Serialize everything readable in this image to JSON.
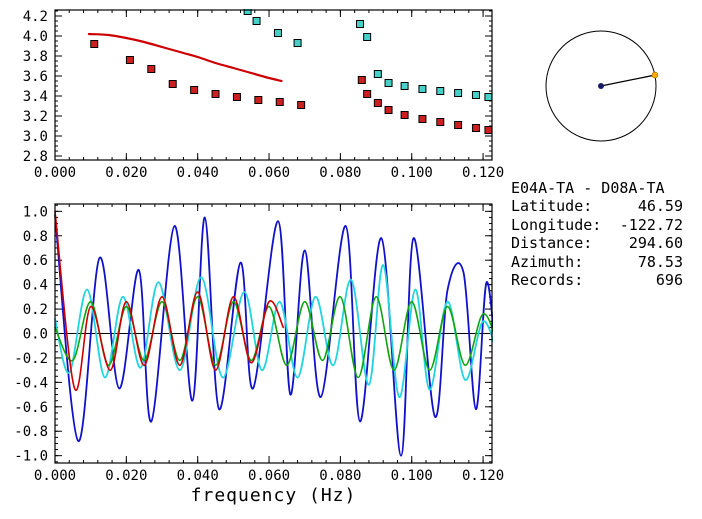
{
  "info": {
    "pair": "E04A-TA - D08A-TA",
    "rows": [
      {
        "label": "Latitude:",
        "value": "46.59"
      },
      {
        "label": "Longitude:",
        "value": "-122.72"
      },
      {
        "label": "Distance:",
        "value": "294.60"
      },
      {
        "label": "Azimuth:",
        "value": "78.53"
      },
      {
        "label": "Records:",
        "value": "696"
      }
    ]
  },
  "azimuth_indicator": {
    "azimuth_deg": 78.53,
    "circle_color": "#000000",
    "center_dot_color": "#1a1a66",
    "end_dot_color": "#ffaa00"
  },
  "chart_data": [
    {
      "type": "scatter+line",
      "name": "dispersion-panel",
      "title": "",
      "xlabel": "",
      "ylabel": "",
      "xlim": [
        0,
        0.1225
      ],
      "ylim": [
        2.76,
        4.26
      ],
      "x_ticks": [
        0,
        0.02,
        0.04,
        0.06,
        0.08,
        0.1,
        0.12
      ],
      "x_tick_labels": [
        "0.000",
        "0.020",
        "0.040",
        "0.060",
        "0.080",
        "0.100",
        "0.120"
      ],
      "x_minor": 0.004,
      "y_ticks": [
        2.8,
        3.0,
        3.2,
        3.4,
        3.6,
        3.8,
        4.0,
        4.2
      ],
      "y_tick_labels": [
        "2.8",
        "3.0",
        "3.2",
        "3.4",
        "3.6",
        "3.8",
        "4.0",
        "4.2"
      ],
      "y_minor": 0.05,
      "zero_line": false,
      "series": [
        {
          "name": "measured-velocity-red-squares",
          "kind": "scatter",
          "marker": "square",
          "color": "#cc2020",
          "points": [
            [
              0.011,
              3.92
            ],
            [
              0.021,
              3.76
            ],
            [
              0.027,
              3.67
            ],
            [
              0.033,
              3.52
            ],
            [
              0.039,
              3.46
            ],
            [
              0.045,
              3.42
            ],
            [
              0.051,
              3.39
            ],
            [
              0.057,
              3.36
            ],
            [
              0.063,
              3.34
            ],
            [
              0.069,
              3.31
            ],
            [
              0.086,
              3.56
            ],
            [
              0.0875,
              3.42
            ],
            [
              0.0905,
              3.33
            ],
            [
              0.0935,
              3.26
            ],
            [
              0.098,
              3.21
            ],
            [
              0.103,
              3.17
            ],
            [
              0.108,
              3.14
            ],
            [
              0.113,
              3.11
            ],
            [
              0.118,
              3.08
            ],
            [
              0.1215,
              3.06
            ]
          ]
        },
        {
          "name": "measured-velocity-cyan-squares",
          "kind": "scatter",
          "marker": "square",
          "color": "#45d0c8",
          "points": [
            [
              0.054,
              4.25
            ],
            [
              0.0565,
              4.15
            ],
            [
              0.0625,
              4.03
            ],
            [
              0.068,
              3.93
            ],
            [
              0.0855,
              4.12
            ],
            [
              0.0875,
              3.99
            ],
            [
              0.0905,
              3.62
            ],
            [
              0.0935,
              3.53
            ],
            [
              0.098,
              3.5
            ],
            [
              0.103,
              3.47
            ],
            [
              0.108,
              3.45
            ],
            [
              0.113,
              3.43
            ],
            [
              0.118,
              3.41
            ],
            [
              0.1215,
              3.39
            ]
          ]
        },
        {
          "name": "reference-model-curve",
          "kind": "line",
          "color": "#cc0000",
          "width": 2.2,
          "points": [
            [
              0.0095,
              4.02
            ],
            [
              0.015,
              4.01
            ],
            [
              0.02,
              3.98
            ],
            [
              0.025,
              3.94
            ],
            [
              0.03,
              3.89
            ],
            [
              0.035,
              3.84
            ],
            [
              0.04,
              3.79
            ],
            [
              0.045,
              3.73
            ],
            [
              0.05,
              3.68
            ],
            [
              0.055,
              3.63
            ],
            [
              0.06,
              3.58
            ],
            [
              0.0635,
              3.55
            ]
          ]
        }
      ]
    },
    {
      "type": "line",
      "name": "spectra-panel",
      "title": "",
      "xlabel": "frequency (Hz)",
      "ylabel": "",
      "xlim": [
        0,
        0.1225
      ],
      "ylim": [
        -1.06,
        1.06
      ],
      "x_ticks": [
        0,
        0.02,
        0.04,
        0.06,
        0.08,
        0.1,
        0.12
      ],
      "x_tick_labels": [
        "0.000",
        "0.020",
        "0.040",
        "0.060",
        "0.080",
        "0.100",
        "0.120"
      ],
      "x_minor": 0.004,
      "y_ticks": [
        -1.0,
        -0.8,
        -0.6,
        -0.4,
        -0.2,
        0.0,
        0.2,
        0.4,
        0.6,
        0.8,
        1.0
      ],
      "y_tick_labels": [
        "-1.0",
        "-0.8",
        "-0.6",
        "-0.4",
        "-0.2",
        "0.0",
        "0.2",
        "0.4",
        "0.6",
        "0.8",
        "1.0"
      ],
      "y_minor": 0.05,
      "zero_line": true,
      "series": [
        {
          "name": "cross-spectrum-blue",
          "kind": "line",
          "color": "#1111cc",
          "width": 1.8,
          "points": [
            [
              0.0,
              0.97
            ],
            [
              0.0065,
              -0.88
            ],
            [
              0.0125,
              0.62
            ],
            [
              0.018,
              -0.45
            ],
            [
              0.0235,
              0.52
            ],
            [
              0.027,
              -0.72
            ],
            [
              0.0335,
              0.88
            ],
            [
              0.0385,
              -0.55
            ],
            [
              0.042,
              0.95
            ],
            [
              0.046,
              -0.62
            ],
            [
              0.052,
              0.58
            ],
            [
              0.0555,
              -0.45
            ],
            [
              0.0625,
              0.92
            ],
            [
              0.066,
              -0.5
            ],
            [
              0.07,
              0.68
            ],
            [
              0.0745,
              -0.52
            ],
            [
              0.0815,
              0.88
            ],
            [
              0.0855,
              -0.72
            ],
            [
              0.0915,
              0.78
            ],
            [
              0.097,
              -1.0
            ],
            [
              0.1005,
              0.78
            ],
            [
              0.1065,
              -0.68
            ],
            [
              0.11,
              0.35
            ],
            [
              0.1145,
              0.5
            ],
            [
              0.118,
              -0.62
            ],
            [
              0.121,
              0.42
            ],
            [
              0.124,
              -0.35
            ]
          ]
        },
        {
          "name": "cross-spectrum-cyan",
          "kind": "line",
          "color": "#22d4dd",
          "width": 1.8,
          "points": [
            [
              0.0,
              0.12
            ],
            [
              0.004,
              -0.32
            ],
            [
              0.009,
              0.36
            ],
            [
              0.014,
              -0.36
            ],
            [
              0.019,
              0.3
            ],
            [
              0.024,
              -0.28
            ],
            [
              0.029,
              0.42
            ],
            [
              0.035,
              -0.3
            ],
            [
              0.041,
              0.46
            ],
            [
              0.047,
              -0.36
            ],
            [
              0.053,
              0.34
            ],
            [
              0.058,
              -0.3
            ],
            [
              0.063,
              0.26
            ],
            [
              0.068,
              -0.36
            ],
            [
              0.073,
              0.3
            ],
            [
              0.078,
              -0.26
            ],
            [
              0.083,
              0.44
            ],
            [
              0.088,
              -0.42
            ],
            [
              0.092,
              0.56
            ],
            [
              0.0965,
              -0.52
            ],
            [
              0.101,
              0.36
            ],
            [
              0.105,
              -0.46
            ],
            [
              0.11,
              0.26
            ],
            [
              0.115,
              -0.38
            ],
            [
              0.12,
              0.1
            ],
            [
              0.1245,
              -0.22
            ]
          ]
        },
        {
          "name": "model-spectrum-green",
          "kind": "line",
          "color": "#11a611",
          "width": 1.6,
          "points": [
            [
              0.0,
              0.05
            ],
            [
              0.005,
              -0.22
            ],
            [
              0.01,
              0.26
            ],
            [
              0.015,
              -0.26
            ],
            [
              0.02,
              0.22
            ],
            [
              0.025,
              -0.22
            ],
            [
              0.03,
              0.26
            ],
            [
              0.035,
              -0.22
            ],
            [
              0.04,
              0.3
            ],
            [
              0.045,
              -0.26
            ],
            [
              0.05,
              0.26
            ],
            [
              0.055,
              -0.22
            ],
            [
              0.06,
              0.22
            ],
            [
              0.065,
              -0.26
            ],
            [
              0.07,
              0.26
            ],
            [
              0.075,
              -0.22
            ],
            [
              0.08,
              0.3
            ],
            [
              0.085,
              -0.36
            ],
            [
              0.09,
              0.3
            ],
            [
              0.095,
              -0.3
            ],
            [
              0.1,
              0.26
            ],
            [
              0.105,
              -0.3
            ],
            [
              0.11,
              0.22
            ],
            [
              0.115,
              -0.26
            ],
            [
              0.12,
              0.16
            ],
            [
              0.1245,
              -0.12
            ]
          ]
        },
        {
          "name": "model-spectrum-red",
          "kind": "line",
          "color": "#cc0000",
          "width": 1.6,
          "points": [
            [
              0.0,
              1.0
            ],
            [
              0.0055,
              -0.45
            ],
            [
              0.01,
              0.22
            ],
            [
              0.0155,
              -0.3
            ],
            [
              0.02,
              0.26
            ],
            [
              0.025,
              -0.26
            ],
            [
              0.03,
              0.3
            ],
            [
              0.035,
              -0.26
            ],
            [
              0.04,
              0.34
            ],
            [
              0.045,
              -0.3
            ],
            [
              0.05,
              0.3
            ],
            [
              0.055,
              -0.24
            ],
            [
              0.06,
              0.26
            ],
            [
              0.064,
              0.05
            ]
          ]
        }
      ]
    }
  ]
}
